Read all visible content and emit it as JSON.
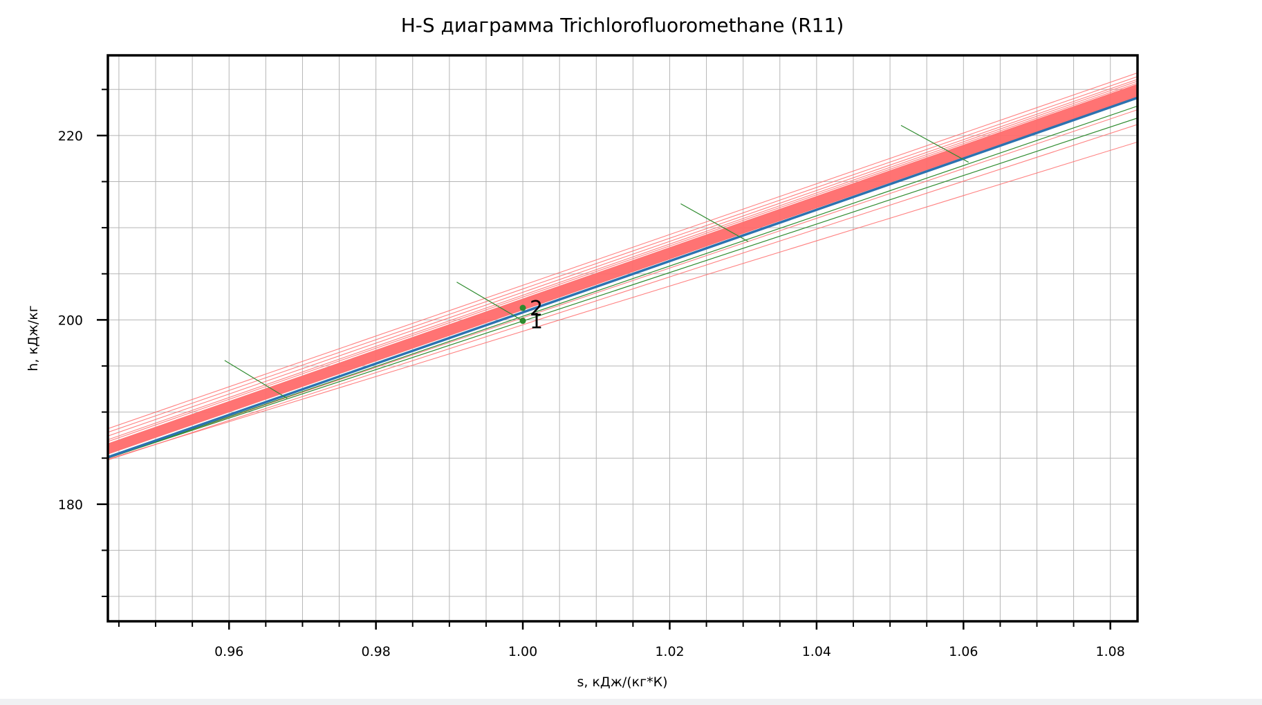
{
  "chart_data": {
    "type": "line",
    "title": "H-S диаграмма Trichlorofluoromethane (R11)",
    "xlabel": "s, кДж/(кг*К)",
    "ylabel": "h, кДж/кг",
    "xlim": [
      0.9435,
      1.0837
    ],
    "ylim": [
      167.3,
      228.7
    ],
    "x_ticks": [
      0.96,
      0.98,
      1.0,
      1.02,
      1.04,
      1.06,
      1.08
    ],
    "x_tick_labels": [
      "0.96",
      "0.98",
      "1.00",
      "1.02",
      "1.04",
      "1.06",
      "1.08"
    ],
    "y_ticks": [
      180,
      200,
      220
    ],
    "y_tick_labels": [
      "180",
      "200",
      "220"
    ],
    "grid": true,
    "colors": {
      "isobar": "#ff6b6b",
      "saturation": "#2c72b0",
      "isotherm": "#2e8b2e",
      "point": "#2e8b2e"
    },
    "isobar_band": {
      "x": [
        0.9435,
        1.0837
      ],
      "y_low": [
        185.4,
        224.2
      ],
      "y_high": [
        186.6,
        225.6
      ]
    },
    "isobars": [
      {
        "x": [
          0.9435,
          1.0837
        ],
        "y": [
          188.2,
          226.8
        ]
      },
      {
        "x": [
          0.9435,
          1.0837
        ],
        "y": [
          187.8,
          226.4
        ]
      },
      {
        "x": [
          0.9435,
          1.0837
        ],
        "y": [
          187.4,
          226.1
        ]
      },
      {
        "x": [
          0.9435,
          1.0837
        ],
        "y": [
          187.0,
          225.9
        ]
      },
      {
        "x": [
          0.9435,
          1.0837
        ],
        "y": [
          186.8,
          225.7
        ]
      },
      {
        "x": [
          0.9435,
          1.0837
        ],
        "y": [
          185.0,
          222.8
        ]
      },
      {
        "x": [
          0.9435,
          1.0837
        ],
        "y": [
          184.8,
          221.2
        ]
      },
      {
        "x": [
          0.9435,
          1.0837
        ],
        "y": [
          184.9,
          219.3
        ]
      }
    ],
    "saturation_line": {
      "x": [
        0.9435,
        1.0837
      ],
      "y": [
        185.1,
        224.1
      ]
    },
    "isotherms_long": [
      {
        "x": [
          0.9435,
          1.0837
        ],
        "y": [
          185.0,
          223.2
        ]
      },
      {
        "x": [
          0.9435,
          1.0837
        ],
        "y": [
          185.0,
          221.9
        ]
      }
    ],
    "isotherm_segments": [
      {
        "x": [
          0.9594,
          0.9679
        ],
        "y": [
          195.6,
          191.5
        ]
      },
      {
        "x": [
          0.991,
          1.0
        ],
        "y": [
          204.1,
          199.9
        ]
      },
      {
        "x": [
          1.0215,
          1.0307
        ],
        "y": [
          212.6,
          208.5
        ]
      },
      {
        "x": [
          1.0515,
          1.0607
        ],
        "y": [
          221.1,
          217.1
        ]
      }
    ],
    "points": [
      {
        "label": "1",
        "x": 1.0,
        "y": 199.9
      },
      {
        "label": "2",
        "x": 1.0,
        "y": 201.3
      }
    ]
  }
}
